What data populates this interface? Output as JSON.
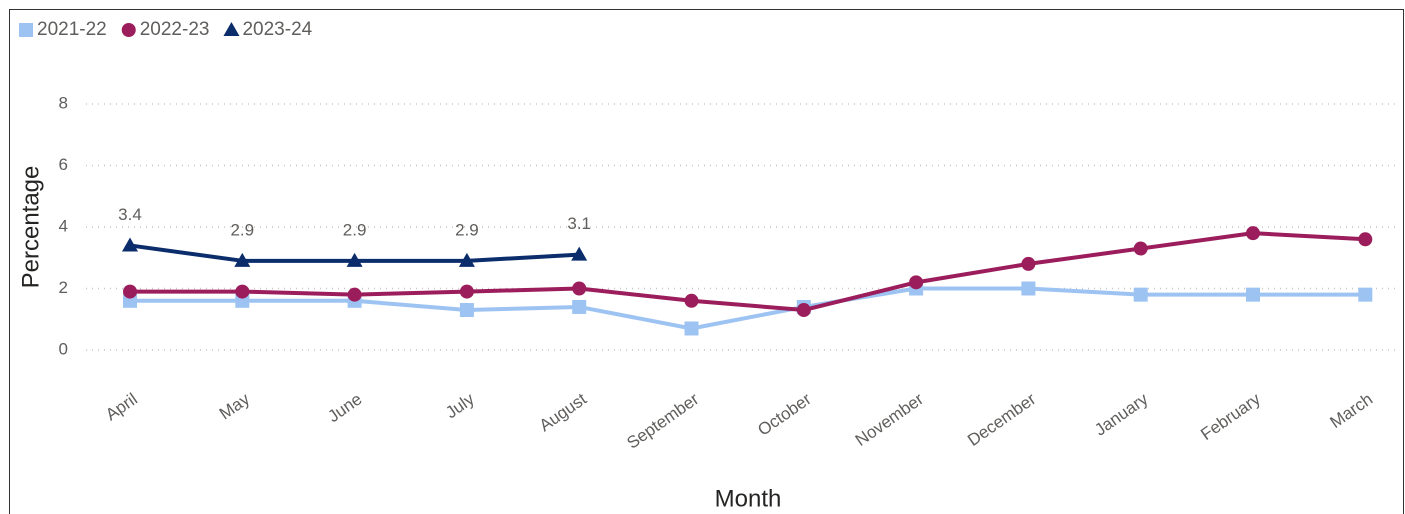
{
  "chart_data": {
    "type": "line",
    "x_label": "Month",
    "y_label": "Percentage",
    "categories": [
      "April",
      "May",
      "June",
      "July",
      "August",
      "September",
      "October",
      "November",
      "December",
      "January",
      "February",
      "March"
    ],
    "ylim": [
      0,
      8
    ],
    "yticks": [
      0,
      2,
      4,
      6,
      8
    ],
    "grid": true,
    "legend": "top-left",
    "series": [
      {
        "name": "2021-22",
        "color": "#9dc3f2",
        "marker": "square",
        "values": [
          1.6,
          1.6,
          1.6,
          1.3,
          1.4,
          0.7,
          1.4,
          2.0,
          2.0,
          1.8,
          1.8,
          1.8
        ]
      },
      {
        "name": "2022-23",
        "color": "#9b1d5b",
        "marker": "circle",
        "values": [
          1.9,
          1.9,
          1.8,
          1.9,
          2.0,
          1.6,
          1.3,
          2.2,
          2.8,
          3.3,
          3.8,
          3.6
        ]
      },
      {
        "name": "2023-24",
        "color": "#0c2d6b",
        "marker": "triangle",
        "data_labels": true,
        "values": [
          3.4,
          2.9,
          2.9,
          2.9,
          3.1,
          null,
          null,
          null,
          null,
          null,
          null,
          null
        ]
      }
    ]
  }
}
